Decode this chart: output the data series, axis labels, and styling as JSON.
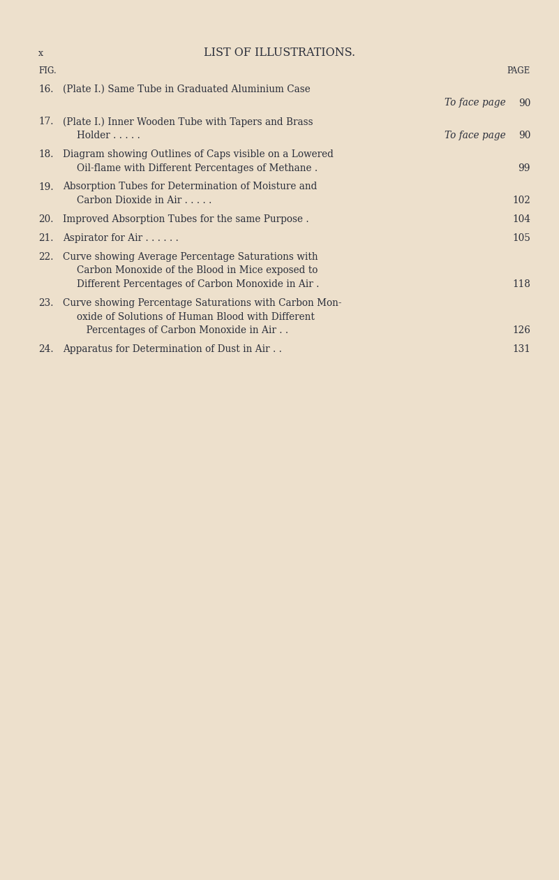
{
  "bg_color": "#ede0cc",
  "text_color": "#2a2e3a",
  "page_label": "x",
  "title": "LIST OF ILLUSTRATIONS.",
  "col_fig": "FIG.",
  "col_page": "PAGE",
  "entries": [
    {
      "num": "16.",
      "line1": "(Plate I.) Same Tube in Graduated Aluminium Case",
      "line2": "To face page",
      "line2_italic": true,
      "line2_right": true,
      "page": "90",
      "page_on_line": 2
    },
    {
      "num": "17.",
      "line1": "(Plate I.) Inner Wooden Tube with Tapers and Brass",
      "line2": "Holder . . . . .           To face page",
      "line2_italic": false,
      "line2_right": false,
      "line2_mixed": true,
      "page": "90",
      "page_on_line": 2
    },
    {
      "num": "18.",
      "line1": "Diagram showing Outlines of Caps visible on a Lowered",
      "line2": "Oil-flame with Different Percentages of Methane . ",
      "line2_italic": false,
      "line2_right": false,
      "page": "99",
      "page_on_line": 2
    },
    {
      "num": "19.",
      "line1": "Absorption Tubes for Determination of Moisture and",
      "line2": "Carbon Dioxide in Air . . . . .",
      "line2_italic": false,
      "line2_right": false,
      "page": "102",
      "page_on_line": 2
    },
    {
      "num": "20.",
      "line1": "Improved Absorption Tubes for the same Purpose .",
      "line2": null,
      "page": "104",
      "page_on_line": 1
    },
    {
      "num": "21.",
      "line1": "Aspirator for Air . . . . . .",
      "line2": null,
      "page": "105",
      "page_on_line": 1
    },
    {
      "num": "22.",
      "line1": "Curve showing Average Percentage Saturations with",
      "line2": "Carbon Monoxide of the Blood in Mice exposed to",
      "line3": "Different Percentages of Carbon Monoxide in Air . ",
      "page": "118",
      "page_on_line": 3
    },
    {
      "num": "23.",
      "line1": "Curve showing Percentage Saturations with Carbon Mon-",
      "line2": "oxide of Solutions of Human Blood with Different",
      "line3": " Percentages of Carbon Monoxide in Air . . ",
      "page": "126",
      "page_on_line": 3
    },
    {
      "num": "24.",
      "line1": "Apparatus for Determination of Dust in Air . . ",
      "line2": null,
      "page": "131",
      "page_on_line": 1
    }
  ],
  "fig_width": 8.01,
  "fig_height": 12.6,
  "dpi": 100
}
